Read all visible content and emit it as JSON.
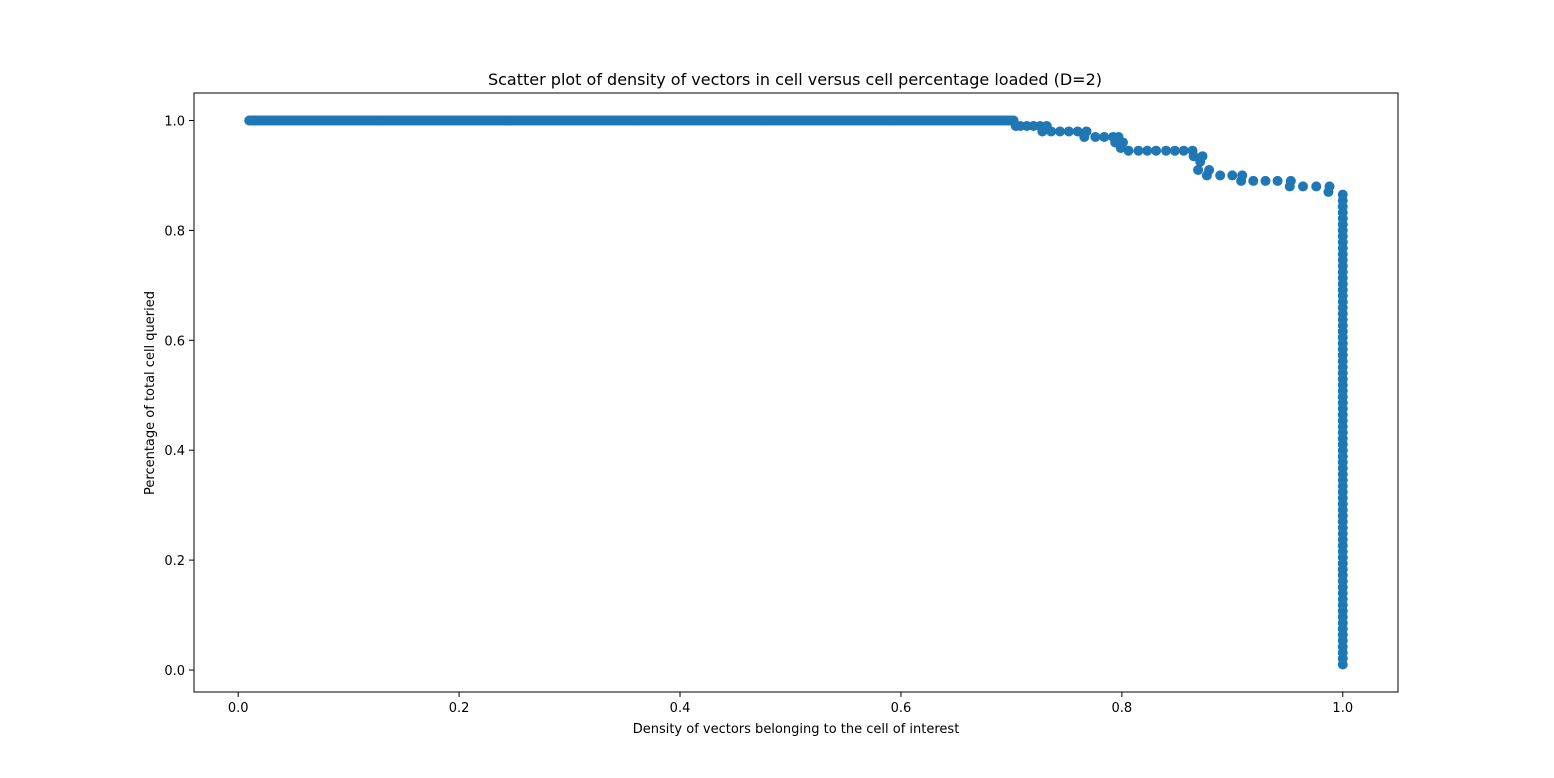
{
  "chart_data": {
    "type": "scatter",
    "title": "Scatter plot of density of vectors in cell versus cell percentage loaded (D=2)",
    "xlabel": "Density of vectors belonging to the cell of interest",
    "ylabel": "Percentage of total cell queried",
    "xlim": [
      -0.04,
      1.05
    ],
    "ylim": [
      -0.04,
      1.05
    ],
    "xticks": [
      0.0,
      0.2,
      0.4,
      0.6,
      0.8,
      1.0
    ],
    "xtick_labels": [
      "0.0",
      "0.2",
      "0.4",
      "0.6",
      "0.8",
      "1.0"
    ],
    "yticks": [
      0.0,
      0.2,
      0.4,
      0.6,
      0.8,
      1.0
    ],
    "ytick_labels": [
      "0.0",
      "0.2",
      "0.4",
      "0.6",
      "0.8",
      "1.0"
    ],
    "grid": false,
    "legend": "none",
    "marker_color": "#1f77b4",
    "series": [
      {
        "top_plateau": {
          "x_start": 0.01,
          "x_end": 0.7,
          "y": 1.0,
          "count": 500
        },
        "points": [
          [
            0.702,
            1.0
          ],
          [
            0.704,
            0.99
          ],
          [
            0.708,
            0.99
          ],
          [
            0.714,
            0.99
          ],
          [
            0.72,
            0.99
          ],
          [
            0.726,
            0.99
          ],
          [
            0.728,
            0.98
          ],
          [
            0.732,
            0.99
          ],
          [
            0.736,
            0.98
          ],
          [
            0.744,
            0.98
          ],
          [
            0.752,
            0.98
          ],
          [
            0.76,
            0.98
          ],
          [
            0.766,
            0.97
          ],
          [
            0.768,
            0.98
          ],
          [
            0.776,
            0.97
          ],
          [
            0.784,
            0.97
          ],
          [
            0.792,
            0.97
          ],
          [
            0.794,
            0.96
          ],
          [
            0.797,
            0.97
          ],
          [
            0.799,
            0.95
          ],
          [
            0.801,
            0.96
          ],
          [
            0.806,
            0.945
          ],
          [
            0.815,
            0.945
          ],
          [
            0.823,
            0.945
          ],
          [
            0.831,
            0.945
          ],
          [
            0.84,
            0.945
          ],
          [
            0.848,
            0.945
          ],
          [
            0.856,
            0.945
          ],
          [
            0.864,
            0.945
          ],
          [
            0.865,
            0.935
          ],
          [
            0.869,
            0.91
          ],
          [
            0.871,
            0.925
          ],
          [
            0.873,
            0.935
          ],
          [
            0.877,
            0.9
          ],
          [
            0.879,
            0.91
          ],
          [
            0.889,
            0.9
          ],
          [
            0.9,
            0.9
          ],
          [
            0.908,
            0.89
          ],
          [
            0.909,
            0.9
          ],
          [
            0.919,
            0.89
          ],
          [
            0.93,
            0.89
          ],
          [
            0.941,
            0.89
          ],
          [
            0.952,
            0.88
          ],
          [
            0.953,
            0.89
          ],
          [
            0.964,
            0.88
          ],
          [
            0.976,
            0.88
          ],
          [
            0.987,
            0.87
          ],
          [
            0.988,
            0.88
          ]
        ],
        "vertical_line": {
          "x": 1.0,
          "y_start": 0.01,
          "y_end": 0.865,
          "count": 80
        }
      }
    ]
  }
}
